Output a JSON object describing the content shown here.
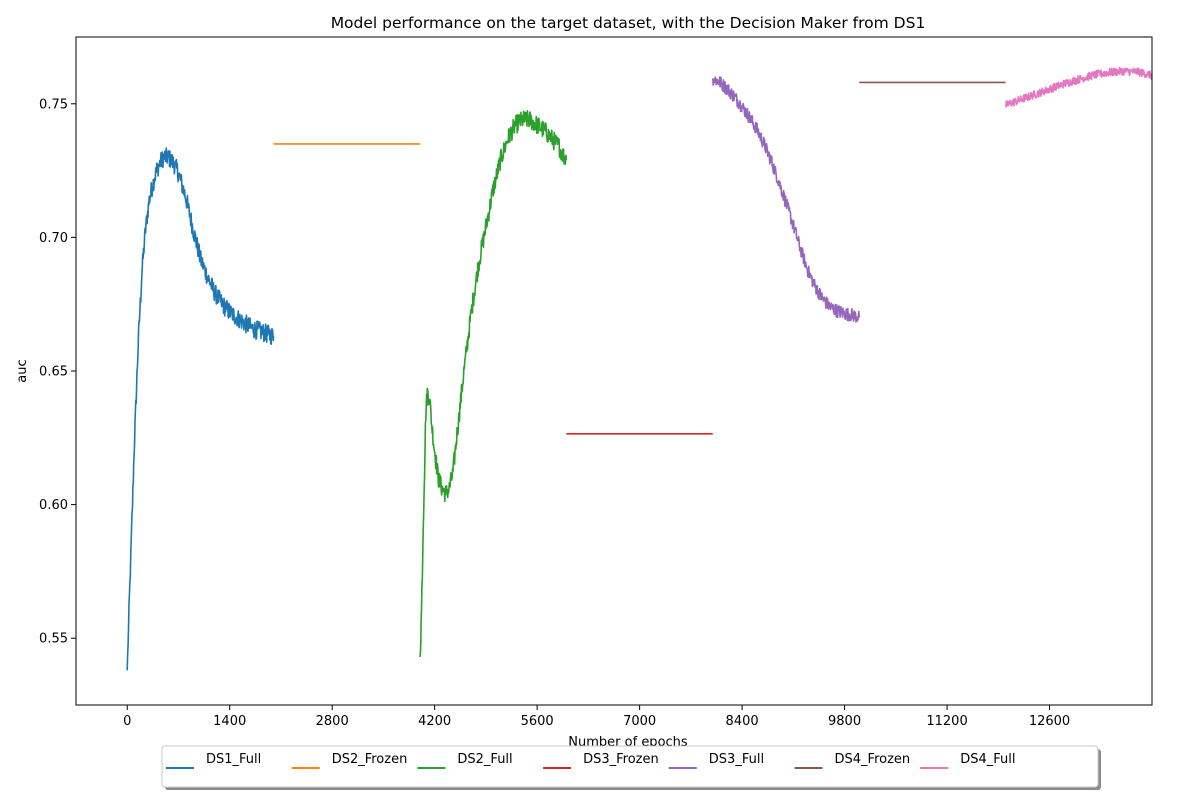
{
  "chart_data": {
    "type": "line",
    "title": "Model performance on the target dataset, with the Decision Maker from DS1",
    "xlabel": "Number of epochs",
    "ylabel": "auc",
    "xlim": [
      -700,
      14000
    ],
    "ylim": [
      0.525,
      0.775
    ],
    "xticks": [
      0,
      1400,
      2800,
      4200,
      5600,
      7000,
      8400,
      9800,
      11200,
      12600
    ],
    "xtick_labels": [
      "0",
      "1400",
      "2800",
      "4200",
      "5600",
      "7000",
      "8400",
      "9800",
      "11200",
      "12600"
    ],
    "yticks": [
      0.55,
      0.6,
      0.65,
      0.7,
      0.75
    ],
    "ytick_labels": [
      "0.55",
      "0.60",
      "0.65",
      "0.70",
      "0.75"
    ],
    "grid": false,
    "legend": {
      "placement": "bottom-center",
      "columns": 7
    },
    "series": [
      {
        "name": "DS1_Full",
        "color": "#1f77b4",
        "noise": 0.0035,
        "x": [
          0,
          30,
          60,
          100,
          150,
          200,
          250,
          300,
          350,
          400,
          450,
          500,
          550,
          600,
          650,
          700,
          800,
          900,
          1000,
          1100,
          1200,
          1300,
          1400,
          1500,
          1600,
          1700,
          1800,
          1900,
          2000
        ],
        "y": [
          0.538,
          0.565,
          0.59,
          0.625,
          0.66,
          0.687,
          0.703,
          0.714,
          0.72,
          0.725,
          0.728,
          0.73,
          0.73,
          0.729,
          0.727,
          0.724,
          0.715,
          0.703,
          0.692,
          0.685,
          0.679,
          0.675,
          0.672,
          0.67,
          0.668,
          0.666,
          0.665,
          0.664,
          0.663
        ]
      },
      {
        "name": "DS2_Frozen",
        "color": "#ff7f0e",
        "noise": 0,
        "x": [
          2000,
          4000
        ],
        "y": [
          0.735,
          0.735
        ]
      },
      {
        "name": "DS2_Full",
        "color": "#2ca02c",
        "noise": 0.0035,
        "x": [
          4000,
          4020,
          4050,
          4080,
          4100,
          4130,
          4160,
          4200,
          4250,
          4300,
          4350,
          4400,
          4450,
          4500,
          4600,
          4700,
          4800,
          4900,
          5000,
          5100,
          5200,
          5300,
          5400,
          5500,
          5600,
          5700,
          5800,
          5900,
          5950,
          6000
        ],
        "y": [
          0.543,
          0.56,
          0.6,
          0.635,
          0.642,
          0.64,
          0.63,
          0.62,
          0.61,
          0.606,
          0.604,
          0.606,
          0.612,
          0.625,
          0.65,
          0.672,
          0.69,
          0.704,
          0.718,
          0.729,
          0.737,
          0.742,
          0.744,
          0.744,
          0.742,
          0.74,
          0.737,
          0.734,
          0.731,
          0.729
        ]
      },
      {
        "name": "DS3_Frozen",
        "color": "#d62728",
        "noise": 0,
        "x": [
          6000,
          8000
        ],
        "y": [
          0.6265,
          0.6265
        ]
      },
      {
        "name": "DS3_Full",
        "color": "#9467bd",
        "noise": 0.0025,
        "x": [
          8000,
          8100,
          8200,
          8300,
          8400,
          8500,
          8600,
          8700,
          8800,
          8900,
          9000,
          9100,
          9200,
          9300,
          9400,
          9500,
          9600,
          9700,
          9800,
          9900,
          10000
        ],
        "y": [
          0.7595,
          0.758,
          0.7555,
          0.7525,
          0.749,
          0.745,
          0.7405,
          0.735,
          0.7285,
          0.721,
          0.713,
          0.7045,
          0.6955,
          0.6875,
          0.6815,
          0.677,
          0.674,
          0.6725,
          0.6715,
          0.671,
          0.67
        ]
      },
      {
        "name": "DS4_Frozen",
        "color": "#8c564b",
        "noise": 0,
        "x": [
          10000,
          12000
        ],
        "y": [
          0.758,
          0.758
        ]
      },
      {
        "name": "DS4_Full",
        "color": "#e377c2",
        "noise": 0.0015,
        "x": [
          12000,
          12200,
          12400,
          12600,
          12800,
          13000,
          13200,
          13400,
          13600,
          13800,
          13950,
          14000
        ],
        "y": [
          0.7495,
          0.7515,
          0.7535,
          0.7555,
          0.7575,
          0.7592,
          0.7607,
          0.7617,
          0.7622,
          0.762,
          0.761,
          0.7605
        ]
      }
    ]
  }
}
